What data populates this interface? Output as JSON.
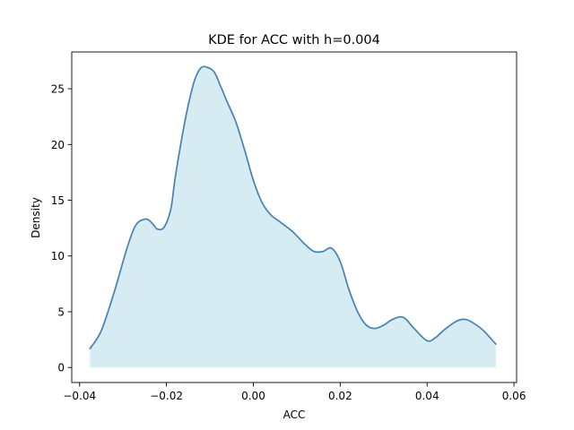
{
  "chart_data": {
    "type": "area",
    "title": "KDE for ACC with h=0.004",
    "xlabel": "ACC",
    "ylabel": "Density",
    "xlim": [
      -0.0418,
      0.0606
    ],
    "ylim": [
      -1.35,
      28.3
    ],
    "xticks": [
      -0.04,
      -0.02,
      0.0,
      0.02,
      0.04,
      0.06
    ],
    "xtick_labels": [
      "−0.04",
      "−0.02",
      "0.00",
      "0.02",
      "0.04",
      "0.06"
    ],
    "yticks": [
      0,
      5,
      10,
      15,
      20,
      25
    ],
    "ytick_labels": [
      "0",
      "5",
      "10",
      "15",
      "20",
      "25"
    ],
    "grid": false,
    "colors": {
      "line": "#4682b4",
      "fill": "#add8e6"
    },
    "series": [
      {
        "x": [
          -0.0376,
          -0.035,
          -0.032,
          -0.029,
          -0.027,
          -0.025,
          -0.024,
          -0.023,
          -0.022,
          -0.0205,
          -0.019,
          -0.018,
          -0.0165,
          -0.015,
          -0.0135,
          -0.012,
          -0.0105,
          -0.009,
          -0.0075,
          -0.006,
          -0.004,
          -0.002,
          0.0,
          0.002,
          0.004,
          0.006,
          0.009,
          0.012,
          0.014,
          0.016,
          0.018,
          0.02,
          0.022,
          0.024,
          0.026,
          0.028,
          0.03,
          0.032,
          0.0345,
          0.037,
          0.04,
          0.042,
          0.044,
          0.047,
          0.049,
          0.051,
          0.053,
          0.0558
        ],
        "y": [
          1.7,
          3.3,
          6.8,
          10.8,
          12.8,
          13.3,
          13.2,
          12.8,
          12.4,
          12.6,
          14.2,
          17.0,
          20.5,
          23.5,
          25.8,
          26.9,
          26.9,
          26.5,
          25.2,
          23.8,
          22.0,
          19.5,
          16.8,
          14.8,
          13.7,
          13.1,
          12.2,
          11.0,
          10.4,
          10.4,
          10.7,
          9.5,
          7.0,
          5.0,
          3.8,
          3.5,
          3.8,
          4.3,
          4.5,
          3.5,
          2.4,
          2.7,
          3.4,
          4.2,
          4.3,
          3.9,
          3.3,
          2.1
        ]
      }
    ]
  }
}
